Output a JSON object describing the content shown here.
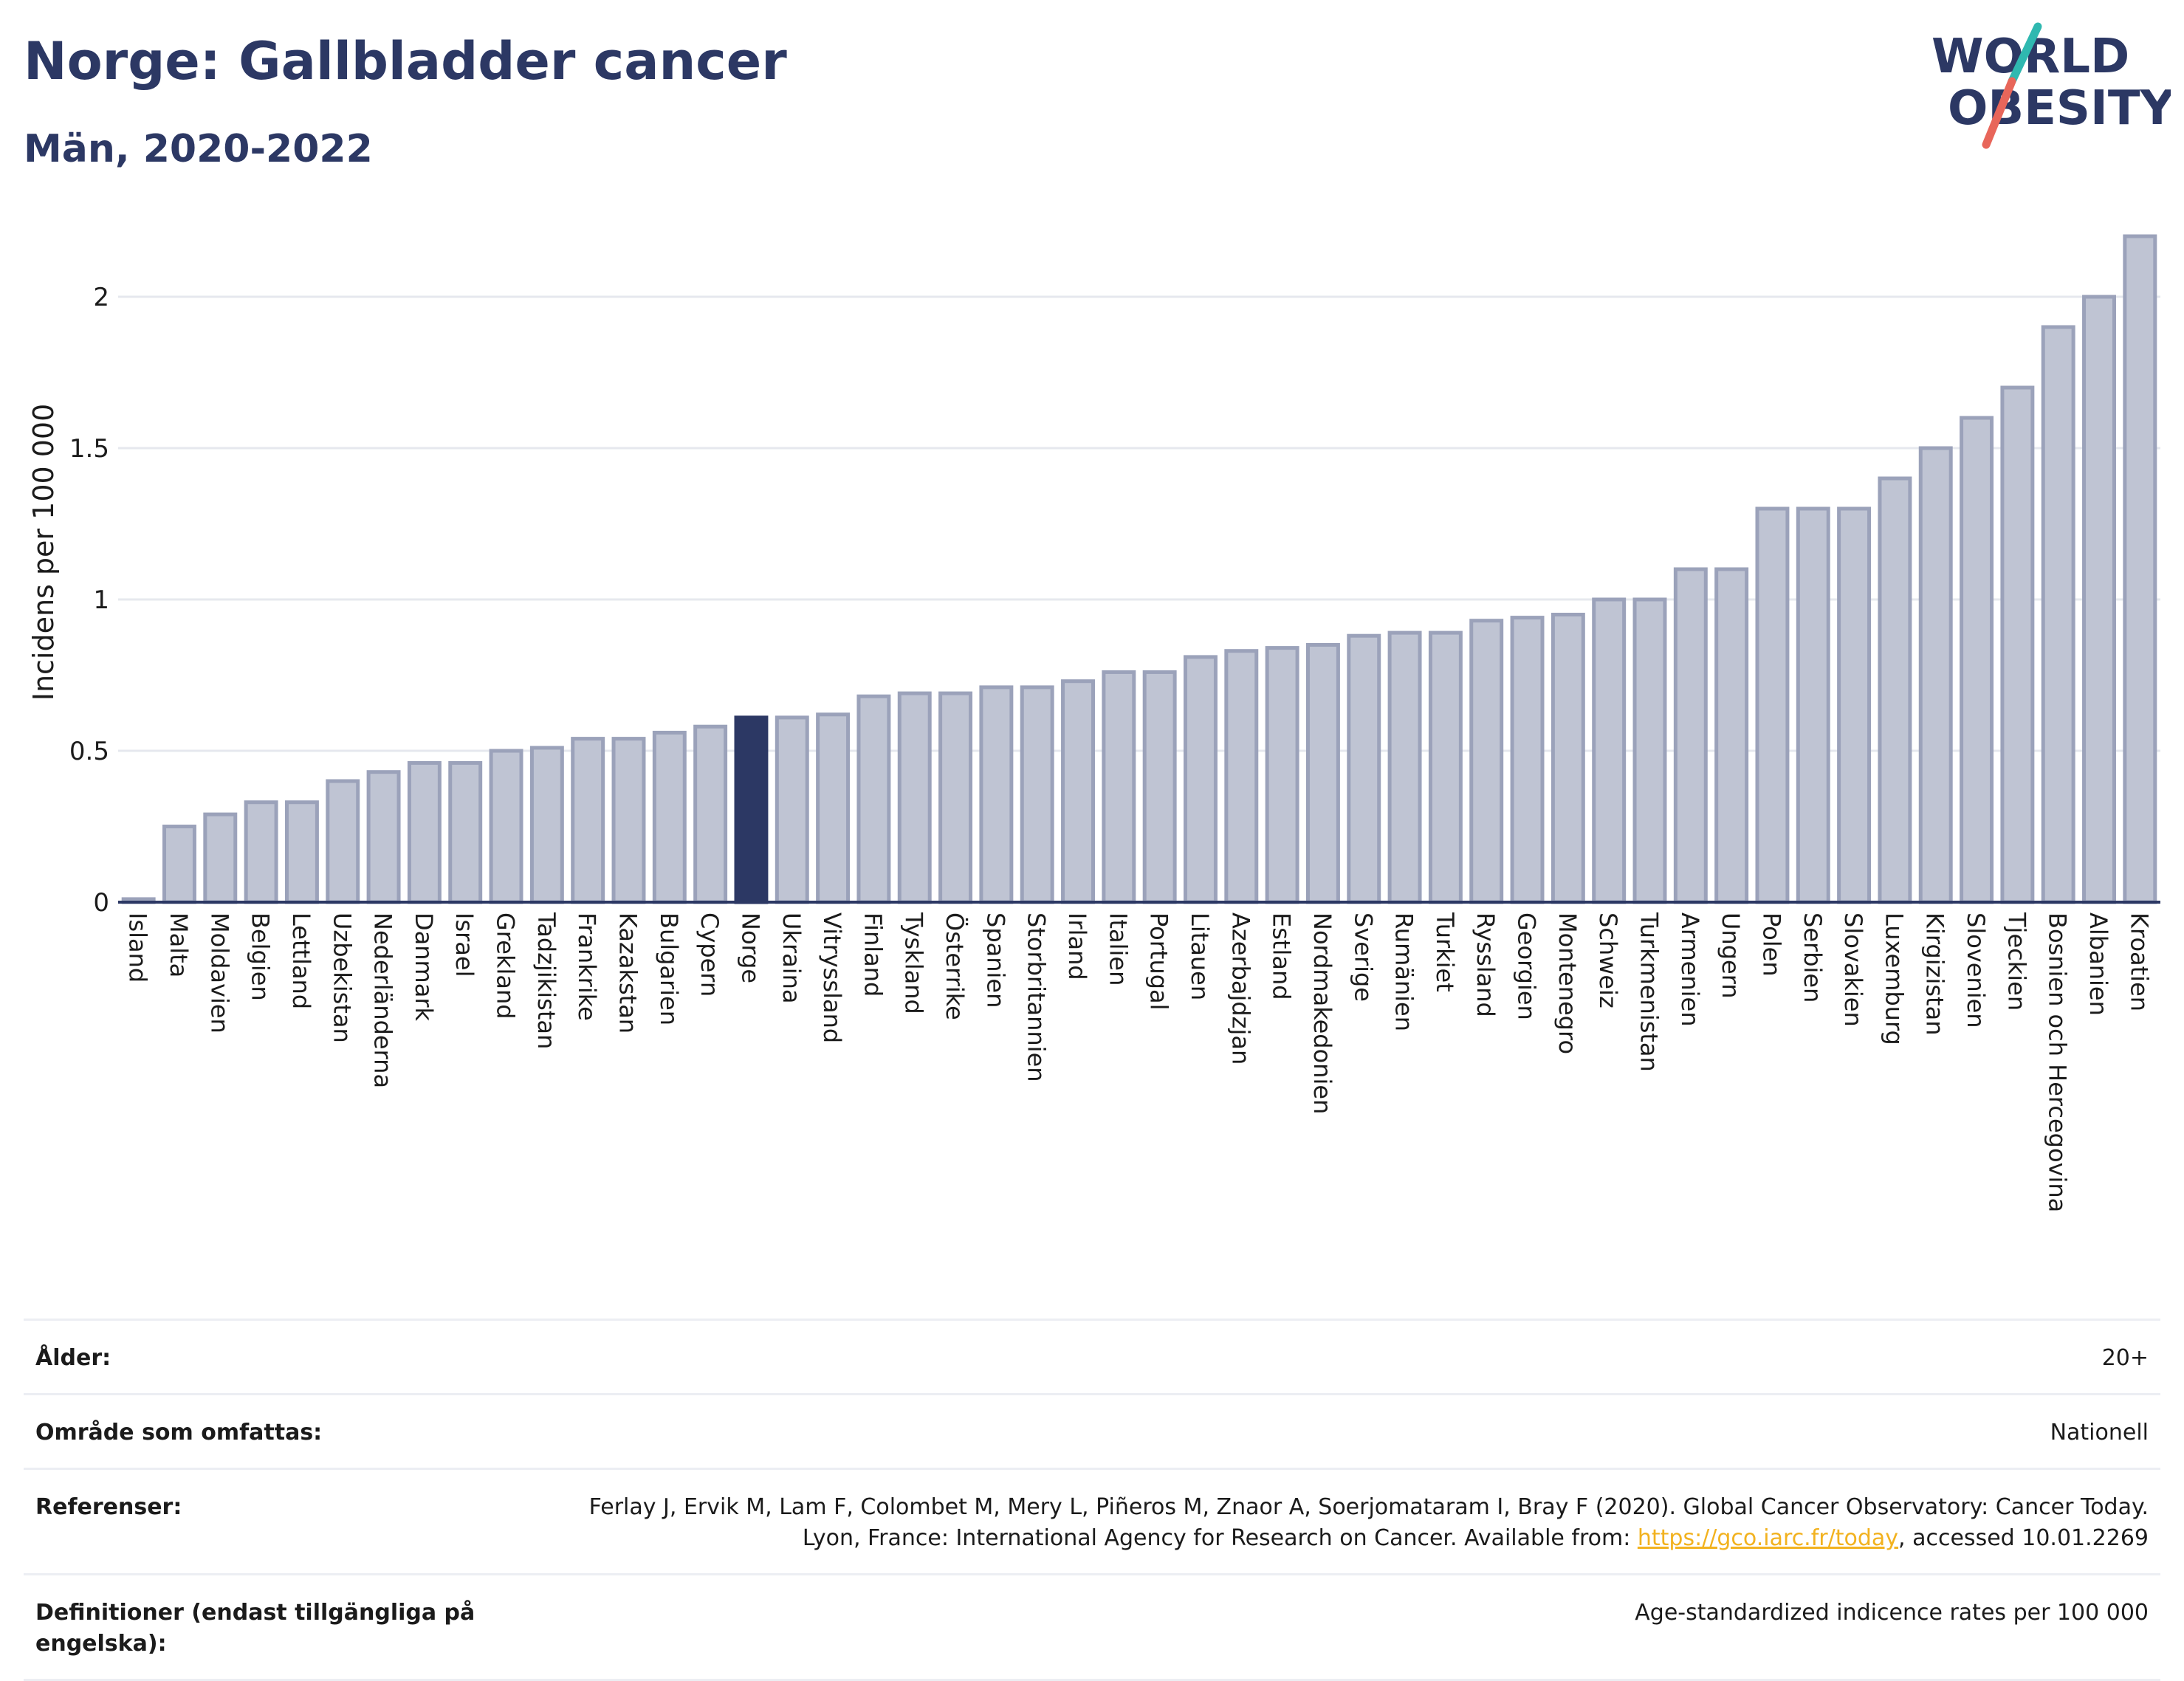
{
  "header": {
    "title": "Norge: Gallbladder cancer",
    "subtitle": "Män, 2020-2022"
  },
  "logo": {
    "line1": "WORLD",
    "line2": "OBESITY",
    "slash_colors": [
      "#2fb8b0",
      "#e8665a"
    ],
    "text_color": "#2c3864"
  },
  "colors": {
    "highlight": "#2c3864",
    "bar_fill": "#bfc4d3",
    "bar_stroke": "#9ba2ba",
    "grid": "#e6e8ee"
  },
  "chart_data": {
    "type": "bar",
    "title": "Norge: Gallbladder cancer",
    "subtitle": "Män, 2020-2022",
    "xlabel": "",
    "ylabel": "Incidens per 100 000",
    "ylim": [
      0,
      2.2
    ],
    "yticks": [
      0,
      0.5,
      1,
      1.5,
      2
    ],
    "ytick_labels": [
      "0",
      "0.5",
      "1",
      "1.5",
      "2"
    ],
    "grid": true,
    "highlight_category": "Norge",
    "categories": [
      "Island",
      "Malta",
      "Moldavien",
      "Belgien",
      "Lettland",
      "Uzbekistan",
      "Nederländerna",
      "Danmark",
      "Israel",
      "Grekland",
      "Tadzjikistan",
      "Frankrike",
      "Kazakstan",
      "Bulgarien",
      "Cypern",
      "Norge",
      "Ukraina",
      "Vitryssland",
      "Finland",
      "Tyskland",
      "Österrike",
      "Spanien",
      "Storbritannien",
      "Irland",
      "Italien",
      "Portugal",
      "Litauen",
      "Azerbajdzjan",
      "Estland",
      "Nordmakedonien",
      "Sverige",
      "Rumänien",
      "Turkiet",
      "Ryssland",
      "Georgien",
      "Montenegro",
      "Schweiz",
      "Turkmenistan",
      "Armenien",
      "Ungern",
      "Polen",
      "Serbien",
      "Slovakien",
      "Luxemburg",
      "Kirgizistan",
      "Slovenien",
      "Tjeckien",
      "Bosnien och Hercegovina",
      "Albanien",
      "Kroatien"
    ],
    "values": [
      0.01,
      0.25,
      0.29,
      0.33,
      0.33,
      0.4,
      0.43,
      0.46,
      0.46,
      0.5,
      0.51,
      0.54,
      0.54,
      0.56,
      0.58,
      0.61,
      0.61,
      0.62,
      0.68,
      0.69,
      0.69,
      0.71,
      0.71,
      0.73,
      0.76,
      0.76,
      0.81,
      0.83,
      0.84,
      0.85,
      0.88,
      0.89,
      0.89,
      0.93,
      0.94,
      0.95,
      1.0,
      1.0,
      1.1,
      1.1,
      1.3,
      1.3,
      1.3,
      1.4,
      1.5,
      1.6,
      1.7,
      1.9,
      2.0,
      2.2
    ]
  },
  "info": {
    "rows": [
      {
        "key": "Ålder:",
        "value": "20+"
      },
      {
        "key": "Område som omfattas:",
        "value": "Nationell"
      },
      {
        "key": "Referenser:",
        "value": "Ferlay J, Ervik M, Lam F, Colombet M, Mery L, Piñeros M, Znaor A, Soerjomataram I, Bray F (2020). Global Cancer Observatory: Cancer Today. Lyon, France: International Agency for Research on Cancer. Available from: ",
        "link": "https://gco.iarc.fr/today",
        "suffix": ", accessed 10.01.2269"
      },
      {
        "key": "Definitioner (endast tillgängliga på engelska):",
        "value": "Age-standardized indicence rates per 100 000"
      }
    ]
  }
}
